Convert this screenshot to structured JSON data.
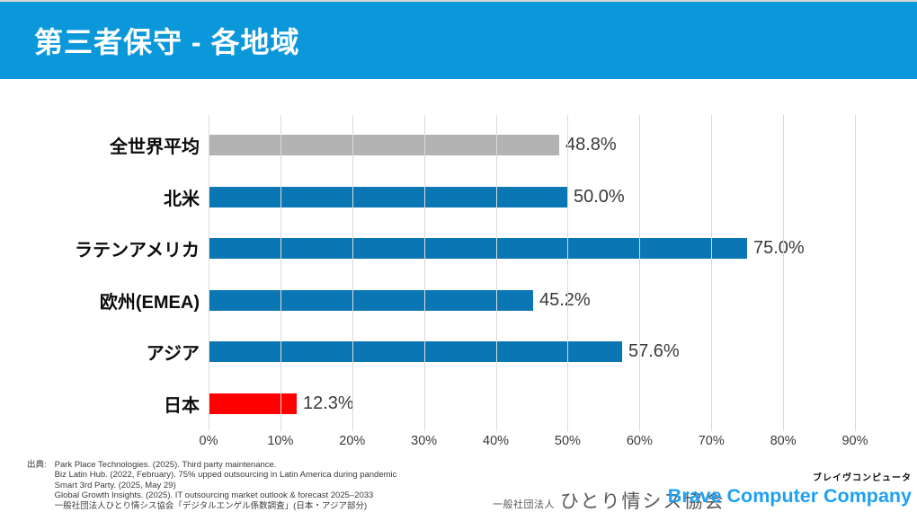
{
  "header": {
    "title": "第三者保守 - 各地域"
  },
  "chart_data": {
    "type": "bar",
    "orientation": "horizontal",
    "title": "第三者保守 - 各地域",
    "categories": [
      "全世界平均",
      "北米",
      "ラテンアメリカ",
      "欧州(EMEA)",
      "アジア",
      "日本"
    ],
    "values": [
      48.8,
      50.0,
      75.0,
      45.2,
      57.6,
      12.3
    ],
    "value_labels": [
      "48.8%",
      "50.0%",
      "75.0%",
      "45.2%",
      "57.6%",
      "12.3%"
    ],
    "bar_colors": [
      "#b3b3b3",
      "#0b76b4",
      "#0b76b4",
      "#0b76b4",
      "#0b76b4",
      "#ff0000"
    ],
    "xlim": [
      0,
      90
    ],
    "x_ticks": [
      "0%",
      "10%",
      "20%",
      "30%",
      "40%",
      "50%",
      "60%",
      "70%",
      "80%",
      "90%"
    ],
    "grid": true,
    "legend": null,
    "colors": {
      "average_bar": "#b3b3b3",
      "region_bar": "#0b76b4",
      "japan_bar": "#ff0000",
      "gridline": "#dadada",
      "header_band": "#0a98da"
    }
  },
  "footer": {
    "source_label": "出典:",
    "source_lines": [
      "Park Place Technologies. (2025). Third party maintenance.",
      "Biz Latin Hub. (2022, February). 75% upped outsourcing in Latin America during pandemic",
      "Smart 3rd Party. (2025, May 29)",
      "Global Growth Insights. (2025). IT outsourcing market outlook & forecast 2025–2033",
      "一般社団法人ひとり情シス協会「デジタルエンゲル係数調査」(日本・アジア部分)"
    ],
    "logos": {
      "hitori_prefix": "一般社団法人",
      "hitori_name": "ひとり情シス協会",
      "brave_kana": "ブレイヴコンピュータ",
      "brave_name": "Brave Computer Company",
      "brave_color": "#1ea1f2"
    }
  }
}
